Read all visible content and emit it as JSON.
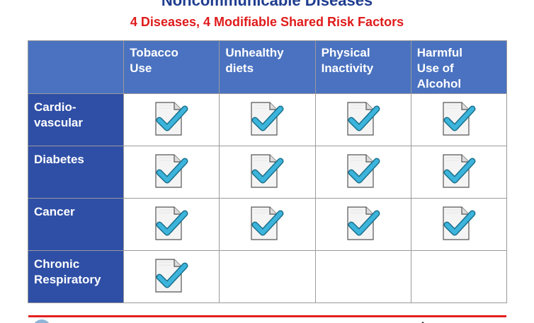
{
  "title": "Noncommunicable Diseases",
  "subtitle": "4 Diseases, 4 Modifiable Shared Risk Factors",
  "table": {
    "columns": [
      "Tobacco Use",
      "Unhealthy diets",
      "Physical Inactivity",
      "Harmful Use of Alcohol"
    ],
    "column_lines": [
      [
        "Tobacco",
        "Use"
      ],
      [
        "Unhealthy",
        "diets"
      ],
      [
        "Physical",
        "Inactivity"
      ],
      [
        "Harmful",
        "Use of",
        "Alcohol"
      ]
    ],
    "rows": [
      {
        "label_lines": [
          "Cardio-",
          "vascular"
        ],
        "checks": [
          true,
          true,
          true,
          true
        ]
      },
      {
        "label_lines": [
          "Diabetes"
        ],
        "checks": [
          true,
          true,
          true,
          true
        ]
      },
      {
        "label_lines": [
          "Cancer"
        ],
        "checks": [
          true,
          true,
          true,
          true
        ]
      },
      {
        "label_lines": [
          "Chronic",
          "Respiratory"
        ],
        "checks": [
          true,
          false,
          false,
          false
        ]
      }
    ]
  },
  "icons": {
    "check": "document-checkmark-icon",
    "logo_left": "organization-logo-icon",
    "logo_right": "partner-logo-icon"
  },
  "colors": {
    "title": "#1f3d8f",
    "subtitle": "#e01b1b",
    "header_bg": "#4a72c0",
    "row_header_bg": "#2f4fa6",
    "check": "#3cb4dc",
    "rule": "#e32020"
  }
}
